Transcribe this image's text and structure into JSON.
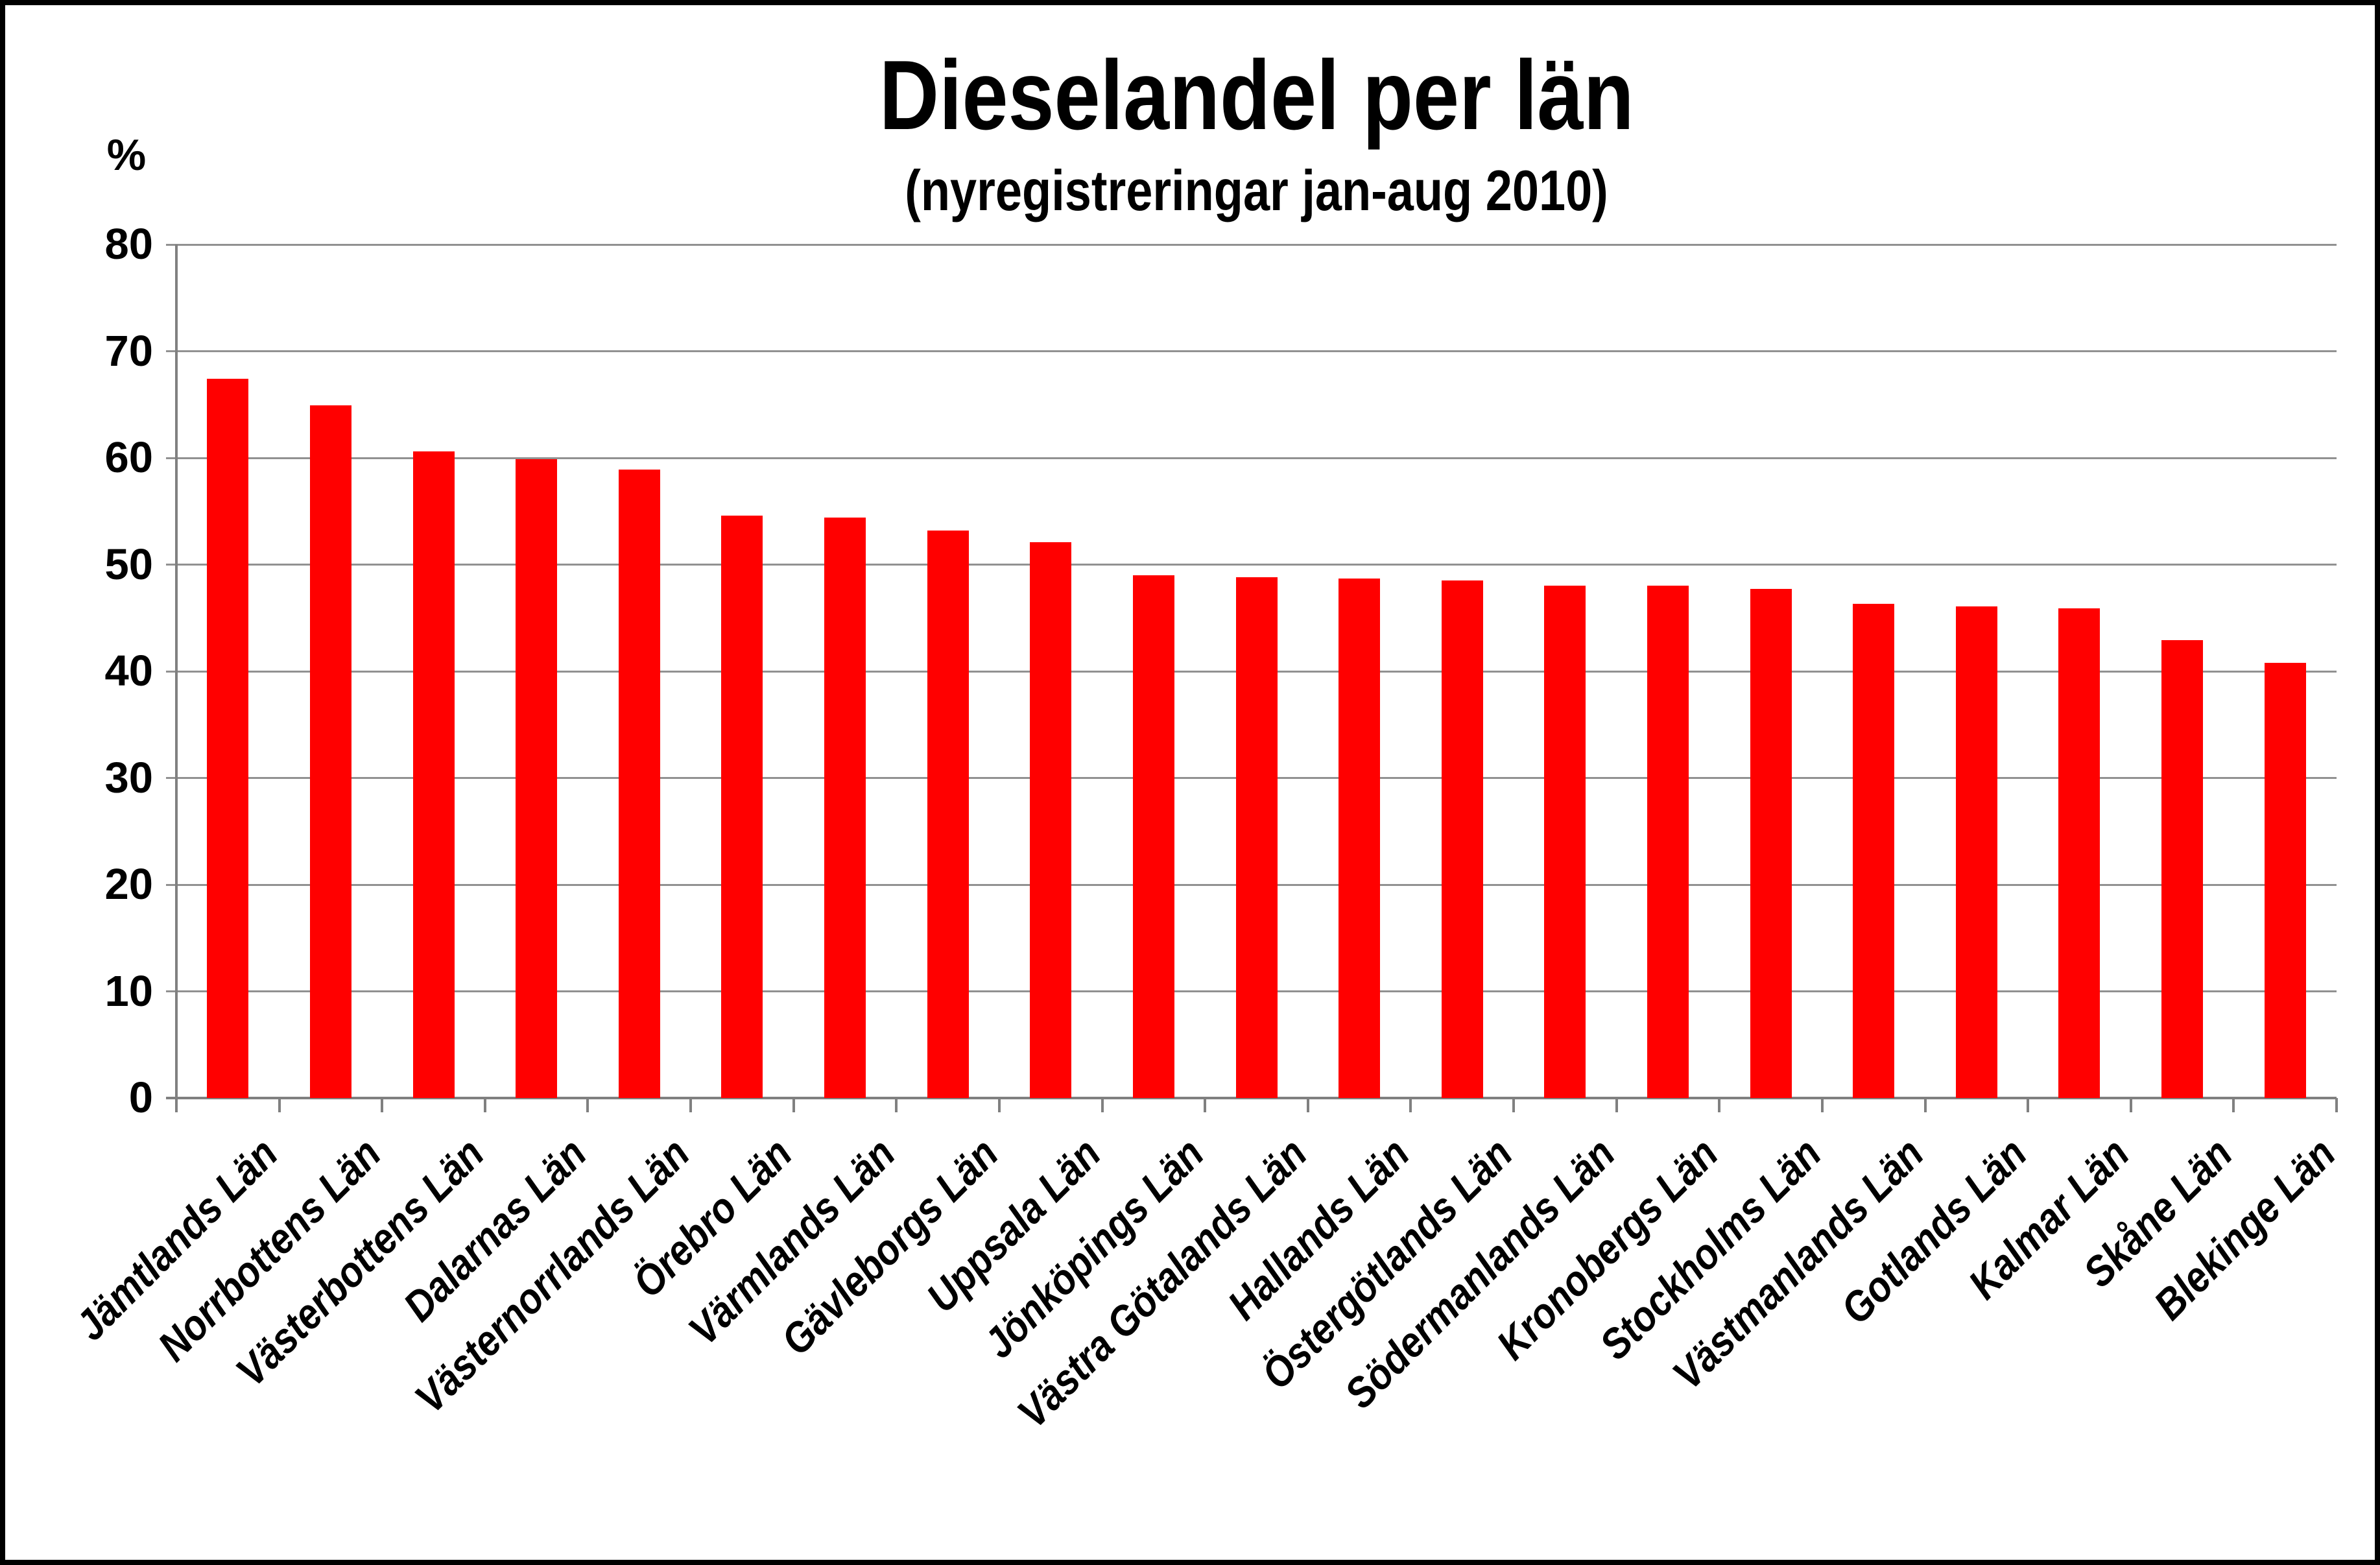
{
  "page": {
    "background_color": "#ffffff",
    "frame_border_color": "#000000"
  },
  "chart_data": {
    "type": "bar",
    "title": "Dieselandel per län",
    "subtitle": "(nyregistreringar jan-aug 2010)",
    "y_axis_unit": "%",
    "xlabel": "",
    "ylabel": "%",
    "ylim": [
      0,
      80
    ],
    "yticks": [
      0,
      10,
      20,
      30,
      40,
      50,
      60,
      70,
      80
    ],
    "grid": true,
    "legend_position": "none",
    "bar_color": "#ff0000",
    "gridline_color": "#919191",
    "axis_color": "#808080",
    "categories": [
      "Jämtlands Län",
      "Norrbottens Län",
      "Västerbottens Län",
      "Dalarnas Län",
      "Västernorrlands Län",
      "Örebro Län",
      "Värmlands Län",
      "Gävleborgs Län",
      "Uppsala Län",
      "Jönköpings Län",
      "Västra Götalands Län",
      "Hallands Län",
      "Östergötlands Län",
      "Södermanlands Län",
      "Kronobergs Län",
      "Stockholms Län",
      "Västmanlands Län",
      "Gotlands Län",
      "Kalmar Län",
      "Skåne Län",
      "Blekinge Län"
    ],
    "values": [
      67.4,
      64.9,
      60.6,
      59.9,
      58.9,
      54.6,
      54.4,
      53.2,
      52.1,
      49.0,
      48.8,
      48.7,
      48.5,
      48.0,
      48.0,
      47.7,
      46.3,
      46.1,
      45.9,
      42.9,
      40.8
    ]
  }
}
